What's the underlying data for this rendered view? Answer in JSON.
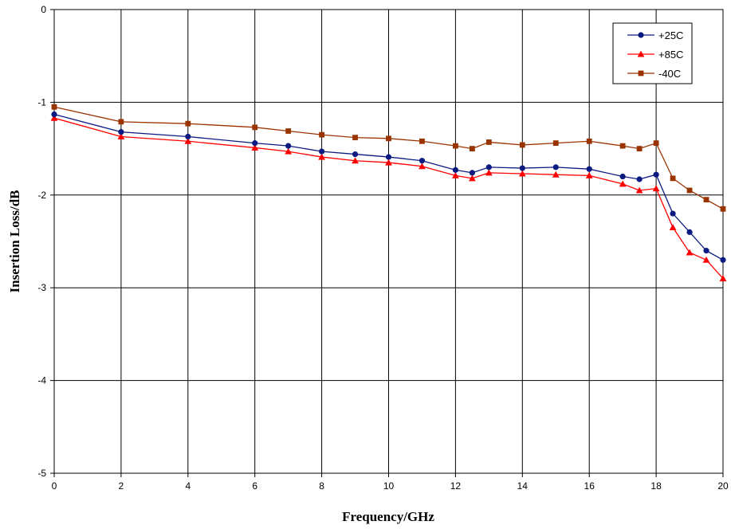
{
  "chart_data": {
    "type": "line",
    "xlabel": "Frequency/GHz",
    "ylabel": "Insertion Loss/dB",
    "xlim": [
      0,
      20
    ],
    "ylim": [
      -5,
      0
    ],
    "x_ticks": [
      "0",
      "2",
      "4",
      "6",
      "8",
      "10",
      "12",
      "14",
      "16",
      "18",
      "20"
    ],
    "y_ticks": [
      "0",
      "-1",
      "-2",
      "-3",
      "-4",
      "-5"
    ],
    "grid": true,
    "legend_position": "top-right",
    "x": [
      0.0,
      2.0,
      4.0,
      6.0,
      7.0,
      8.0,
      9.0,
      10.0,
      11.0,
      12.0,
      12.5,
      13.0,
      14.0,
      15.0,
      16.0,
      17.0,
      17.5,
      18.0,
      18.5,
      19.0,
      19.5,
      20.0
    ],
    "series": [
      {
        "name": "+25C",
        "color": "#0b1a80",
        "marker": "circle",
        "values": [
          -1.13,
          -1.32,
          -1.37,
          -1.44,
          -1.47,
          -1.53,
          -1.56,
          -1.59,
          -1.63,
          -1.73,
          -1.76,
          -1.7,
          -1.71,
          -1.7,
          -1.72,
          -1.8,
          -1.83,
          -1.78,
          -2.2,
          -2.4,
          -2.6,
          -2.7
        ]
      },
      {
        "name": "+85C",
        "color": "#ff0000",
        "marker": "triangle",
        "values": [
          -1.17,
          -1.37,
          -1.42,
          -1.49,
          -1.53,
          -1.59,
          -1.63,
          -1.65,
          -1.69,
          -1.79,
          -1.82,
          -1.76,
          -1.77,
          -1.78,
          -1.79,
          -1.88,
          -1.95,
          -1.93,
          -2.35,
          -2.62,
          -2.7,
          -2.9
        ]
      },
      {
        "name": "-40C",
        "color": "#993300",
        "marker": "square",
        "values": [
          -1.05,
          -1.21,
          -1.23,
          -1.27,
          -1.31,
          -1.35,
          -1.38,
          -1.39,
          -1.42,
          -1.47,
          -1.5,
          -1.43,
          -1.46,
          -1.44,
          -1.42,
          -1.47,
          -1.5,
          -1.44,
          -1.82,
          -1.95,
          -2.05,
          -2.15
        ]
      }
    ]
  }
}
